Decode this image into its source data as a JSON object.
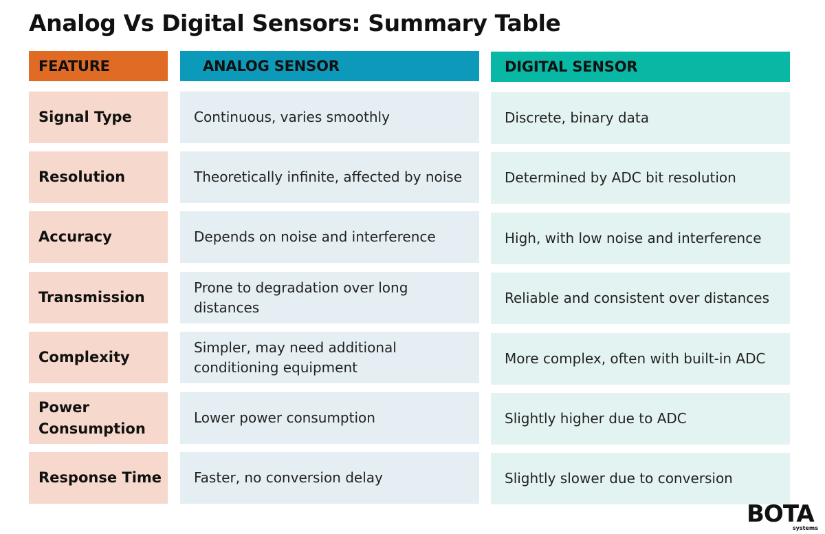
{
  "title": "Analog Vs Digital Sensors: Summary Table",
  "headers": {
    "feature": "FEATURE",
    "analog": "ANALOG SENSOR",
    "digital": "DIGITAL SENSOR"
  },
  "rows": [
    {
      "feature": "Signal Type",
      "analog": "Continuous, varies smoothly",
      "digital": "Discrete, binary data"
    },
    {
      "feature": "Resolution",
      "analog": "Theoretically infinite, affected by noise",
      "digital": "Determined by ADC bit resolution"
    },
    {
      "feature": "Accuracy",
      "analog": "Depends on noise and interference",
      "digital": "High, with low noise and interference"
    },
    {
      "feature": "Transmission",
      "analog": "Prone to degradation over long distances",
      "digital": "Reliable and consistent over distances"
    },
    {
      "feature": "Complexity",
      "analog": "Simpler, may need additional conditioning equipment",
      "digital": "More complex, often with built-in ADC"
    },
    {
      "feature": "Power Consumption",
      "analog": "Lower power consumption",
      "digital": "Slightly higher due to ADC"
    },
    {
      "feature": "Response Time",
      "analog": "Faster, no conversion delay",
      "digital": "Slightly slower due to conversion"
    }
  ],
  "logo": {
    "word": "BOTA",
    "sub": "systems"
  },
  "colors": {
    "feature_header": "#e06b25",
    "analog_header": "#0d9aba",
    "digital_header": "#08b8a5",
    "feature_cell": "#f6d9cc",
    "analog_cell": "#e5eef3",
    "digital_cell": "#e3f3f1"
  }
}
